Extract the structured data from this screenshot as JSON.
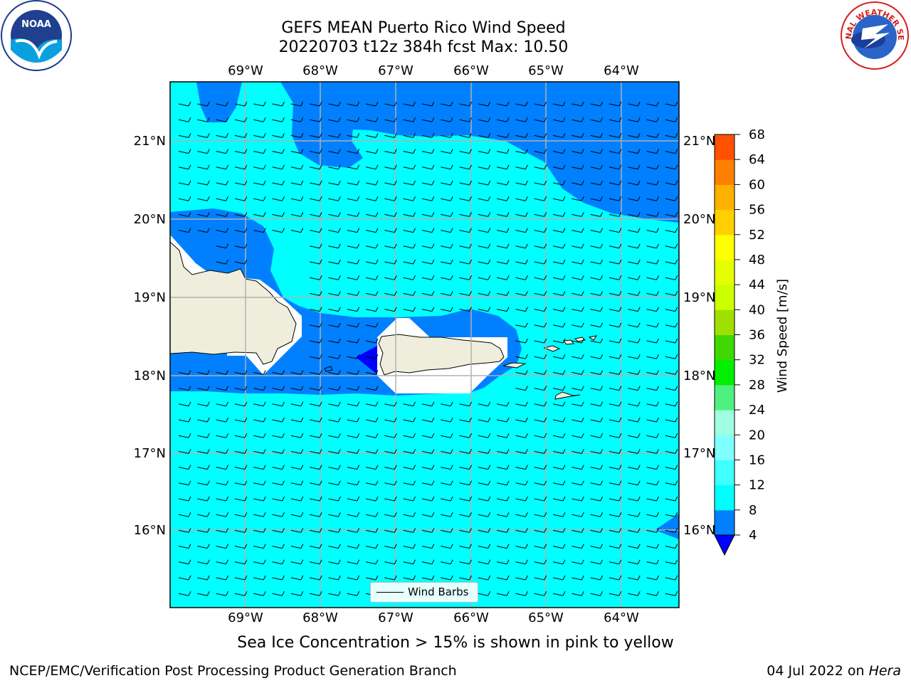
{
  "title": {
    "line1": "GEFS MEAN Puerto Rico Wind Speed",
    "line2": "20220703 t12z 384h fcst   Max: 10.50"
  },
  "logos": {
    "left": {
      "icon": "noaa-logo",
      "text": "NOAA"
    },
    "right": {
      "icon": "nws-logo",
      "text": "NATIONAL WEATHER SERVICE"
    }
  },
  "map": {
    "lon_ticks": [
      "69°W",
      "68°W",
      "67°W",
      "66°W",
      "65°W",
      "64°W"
    ],
    "lat_ticks": [
      "21°N",
      "20°N",
      "19°N",
      "18°N",
      "17°N",
      "16°N"
    ],
    "ocean_color": "#00ffff",
    "low_wind_color": "#0080ff",
    "land_color": "#efeedc"
  },
  "legend": {
    "label": "Wind Barbs"
  },
  "colorbar": {
    "label": "Wind Speed [m/s]",
    "ticks": [
      "4",
      "8",
      "12",
      "16",
      "20",
      "24",
      "28",
      "32",
      "36",
      "40",
      "44",
      "48",
      "52",
      "56",
      "60",
      "64",
      "68"
    ],
    "colors": [
      "#0080ff",
      "#00ffff",
      "#40ffff",
      "#80ffff",
      "#a0ffe0",
      "#50f080",
      "#00f000",
      "#40d800",
      "#a0e000",
      "#ccff00",
      "#e6ff00",
      "#ffff00",
      "#ffd000",
      "#ffb000",
      "#ff8000",
      "#ff5000",
      "#ff2000",
      "#ff0000"
    ],
    "under_color": "#0000ff"
  },
  "subnote": "Sea Ice Concentration > 15% is shown in pink to yellow",
  "footer": {
    "left": "NCEP/EMC/Verification Post Processing Product Generation Branch",
    "right_prefix": "04 Jul 2022 on ",
    "right_italic": "Hera"
  }
}
